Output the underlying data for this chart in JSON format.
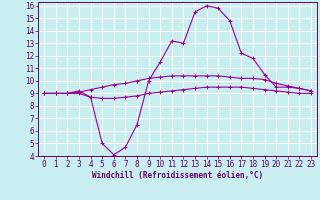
{
  "xlabel": "Windchill (Refroidissement éolien,°C)",
  "xlim": [
    -0.5,
    23.5
  ],
  "ylim": [
    4,
    16.3
  ],
  "yticks": [
    4,
    5,
    6,
    7,
    8,
    9,
    10,
    11,
    12,
    13,
    14,
    15,
    16
  ],
  "xticks": [
    0,
    1,
    2,
    3,
    4,
    5,
    6,
    7,
    8,
    9,
    10,
    11,
    12,
    13,
    14,
    15,
    16,
    17,
    18,
    19,
    20,
    21,
    22,
    23
  ],
  "bg_color": "#c8eef0",
  "grid_color": "#ffffff",
  "line_color": "#990099",
  "line1_x": [
    0,
    1,
    2,
    3,
    4,
    5,
    6,
    7,
    8,
    9,
    10,
    11,
    12,
    13,
    14,
    15,
    16,
    17,
    18,
    19,
    20,
    21,
    22,
    23
  ],
  "line1_y": [
    9.0,
    9.0,
    9.0,
    9.2,
    8.7,
    5.0,
    4.1,
    4.7,
    6.5,
    10.0,
    11.5,
    13.2,
    13.0,
    15.5,
    16.0,
    15.8,
    14.8,
    12.2,
    11.8,
    10.5,
    9.5,
    9.5,
    9.4,
    9.2
  ],
  "line2_x": [
    0,
    1,
    2,
    3,
    4,
    5,
    6,
    7,
    8,
    9,
    10,
    11,
    12,
    13,
    14,
    15,
    16,
    17,
    18,
    19,
    20,
    21,
    22,
    23
  ],
  "line2_y": [
    9.0,
    9.0,
    9.0,
    9.0,
    8.7,
    8.6,
    8.6,
    8.7,
    8.8,
    9.0,
    9.1,
    9.2,
    9.3,
    9.4,
    9.5,
    9.5,
    9.5,
    9.5,
    9.4,
    9.3,
    9.2,
    9.1,
    9.0,
    9.0
  ],
  "line3_x": [
    0,
    1,
    2,
    3,
    4,
    5,
    6,
    7,
    8,
    9,
    10,
    11,
    12,
    13,
    14,
    15,
    16,
    17,
    18,
    19,
    20,
    21,
    22,
    23
  ],
  "line3_y": [
    9.0,
    9.0,
    9.0,
    9.1,
    9.3,
    9.5,
    9.7,
    9.8,
    10.0,
    10.2,
    10.3,
    10.4,
    10.4,
    10.4,
    10.4,
    10.4,
    10.3,
    10.2,
    10.2,
    10.1,
    9.8,
    9.6,
    9.4,
    9.2
  ],
  "tick_fontsize": 5.5,
  "label_fontsize": 5.5,
  "tick_color": "#660066",
  "axis_color": "#660066"
}
